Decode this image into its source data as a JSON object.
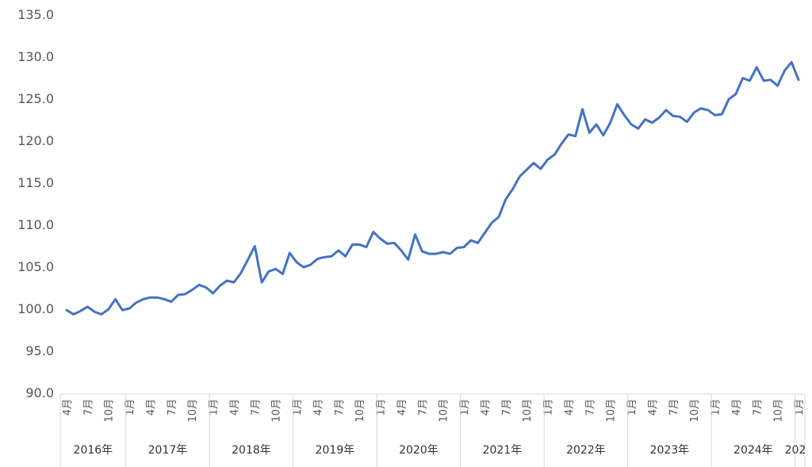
{
  "chart_data": {
    "type": "line",
    "title": "",
    "xlabel": "",
    "ylabel": "",
    "ylim": [
      90,
      135
    ],
    "yticks": [
      "90.0",
      "95.0",
      "100.0",
      "105.0",
      "110.0",
      "115.0",
      "120.0",
      "125.0",
      "130.0",
      "135.0"
    ],
    "grid": false,
    "legend": "none",
    "line_color": "#4472C4",
    "month_ticks": [
      "4月",
      "7月",
      "10月",
      "1月"
    ],
    "years": [
      "2016年",
      "2017年",
      "2018年",
      "2019年",
      "2020年",
      "2021年",
      "2022年",
      "2023年",
      "2024年",
      "202"
    ],
    "x_start": "2016年4月",
    "x_end": "2025年1月",
    "series": [
      {
        "values": [
          99.8,
          99.3,
          99.7,
          100.2,
          99.6,
          99.3,
          99.9,
          101.1,
          99.8,
          100.0,
          100.7,
          101.1,
          101.3,
          101.3,
          101.1,
          100.8,
          101.6,
          101.7,
          102.2,
          102.8,
          102.5,
          101.8,
          102.7,
          103.3,
          103.1,
          104.2,
          105.8,
          107.4,
          103.1,
          104.4,
          104.7,
          104.1,
          106.6,
          105.5,
          104.9,
          105.2,
          105.9,
          106.1,
          106.2,
          106.9,
          106.2,
          107.6,
          107.6,
          107.3,
          109.1,
          108.3,
          107.7,
          107.8,
          106.9,
          105.8,
          108.8,
          106.8,
          106.5,
          106.5,
          106.7,
          106.5,
          107.2,
          107.3,
          108.1,
          107.8,
          109.0,
          110.2,
          110.9,
          113.0,
          114.2,
          115.7,
          116.5,
          117.3,
          116.6,
          117.7,
          118.3,
          119.6,
          120.7,
          120.5,
          123.7,
          120.9,
          121.9,
          120.6,
          122.1,
          124.3,
          123.0,
          121.9,
          121.4,
          122.5,
          122.1,
          122.7,
          123.6,
          122.9,
          122.8,
          122.2,
          123.3,
          123.8,
          123.6,
          123.0,
          123.1,
          124.9,
          125.5,
          127.4,
          127.1,
          128.7,
          127.1,
          127.2,
          126.5,
          128.3,
          129.3,
          127.2
        ]
      }
    ]
  }
}
